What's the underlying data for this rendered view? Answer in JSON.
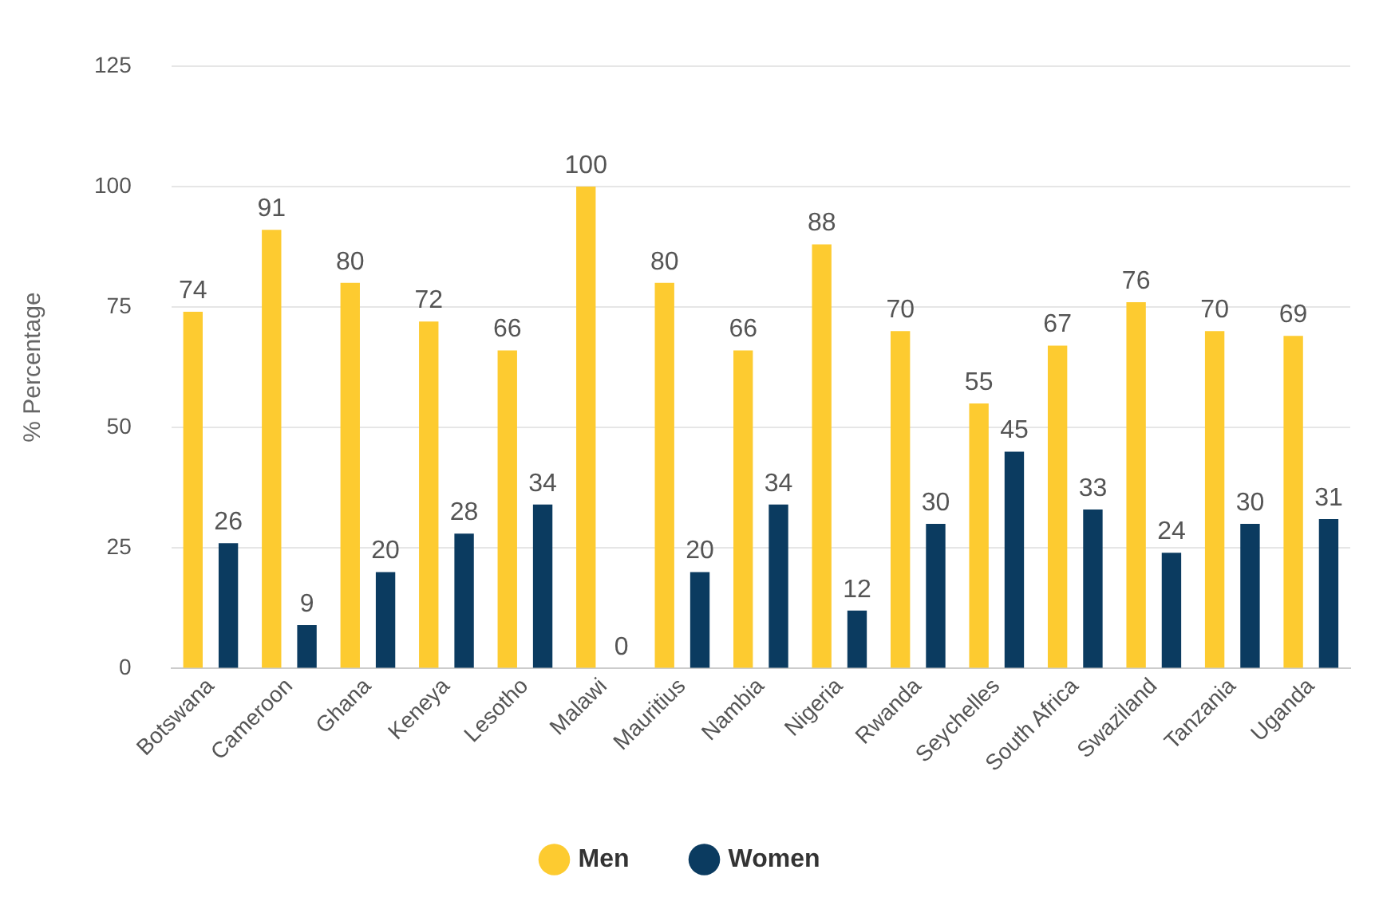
{
  "chart_data": {
    "type": "bar",
    "ylabel": "% Percentage",
    "categories": [
      "Botswana",
      "Cameroon",
      "Ghana",
      "Keneya",
      "Lesotho",
      "Malawi",
      "Mauritius",
      "Nambia",
      "Nigeria",
      "Rwanda",
      "Seychelles",
      "South Africa",
      "Swaziland",
      "Tanzania",
      "Uganda"
    ],
    "series": [
      {
        "name": "Men",
        "color": "#fdcb30",
        "values": [
          74,
          91,
          80,
          72,
          66,
          100,
          80,
          66,
          88,
          70,
          55,
          67,
          76,
          70,
          69
        ]
      },
      {
        "name": "Women",
        "color": "#0b3b60",
        "values": [
          26,
          9,
          20,
          28,
          34,
          0,
          20,
          34,
          12,
          30,
          45,
          33,
          24,
          30,
          31
        ]
      }
    ],
    "ylim": [
      0,
      125
    ],
    "yticks": [
      0,
      25,
      50,
      75,
      100,
      125
    ],
    "grid": "y",
    "legend": "bottom",
    "data_labels": true
  }
}
